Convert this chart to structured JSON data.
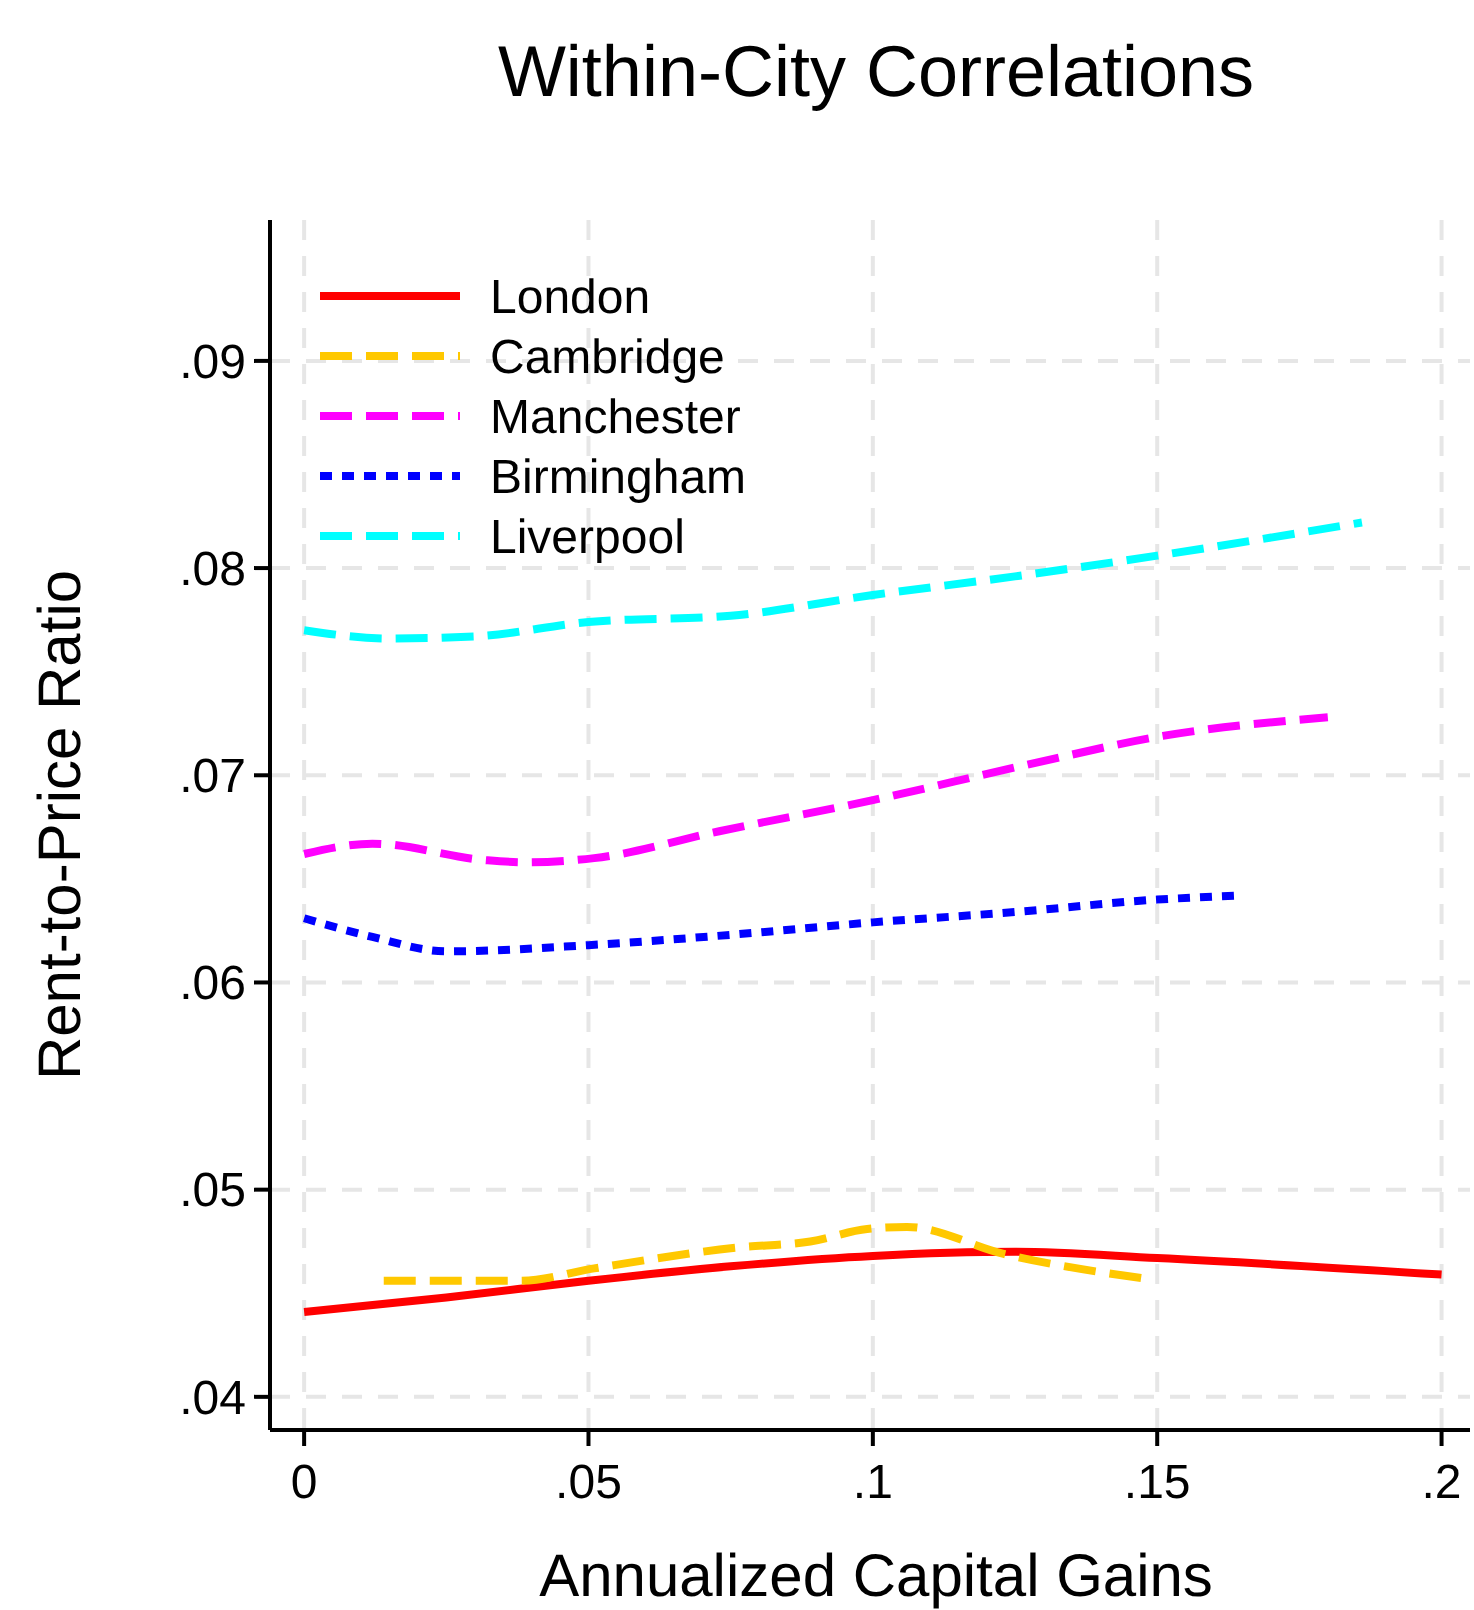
{
  "chart_data": {
    "type": "line",
    "title": "Within-City Correlations",
    "xlabel": "Annualized Capital Gains",
    "ylabel": "Rent-to-Price Ratio",
    "xlim": [
      -0.006,
      0.205
    ],
    "ylim": [
      0.0384,
      0.0968
    ],
    "xticks": [
      0,
      {
        "value": 0.05,
        "label": ".05"
      },
      {
        "value": 0.1,
        "label": ".1"
      },
      {
        "value": 0.15,
        "label": ".15"
      },
      {
        "value": 0.2,
        "label": ".2"
      }
    ],
    "yticks": [
      {
        "value": 0.04,
        "label": ".04"
      },
      {
        "value": 0.05,
        "label": ".05"
      },
      {
        "value": 0.06,
        "label": ".06"
      },
      {
        "value": 0.07,
        "label": ".07"
      },
      {
        "value": 0.08,
        "label": ".08"
      },
      {
        "value": 0.09,
        "label": ".09"
      }
    ],
    "grid": true,
    "legend": "top left",
    "marker": "none",
    "series": [
      {
        "name": "London",
        "color": "#ff0000",
        "line_style": "solid",
        "x": [
          0,
          0.025,
          0.05,
          0.075,
          0.1,
          0.125,
          0.15,
          0.2
        ],
        "values": [
          0.0441,
          0.0448,
          0.0456,
          0.0463,
          0.0468,
          0.047,
          0.0467,
          0.0459
        ]
      },
      {
        "name": "Cambridge",
        "color": "#ffc800",
        "line_style": "dashed",
        "x": [
          0.014,
          0.038,
          0.051,
          0.076,
          0.089,
          0.099,
          0.106,
          0.123,
          0.148
        ],
        "values": [
          0.0456,
          0.0456,
          0.0462,
          0.0472,
          0.0475,
          0.0481,
          0.0482,
          0.0469,
          0.0457
        ]
      },
      {
        "name": "Manchester",
        "color": "#ff00ff",
        "line_style": "dashed",
        "x": [
          0,
          0.012,
          0.032,
          0.039,
          0.051,
          0.073,
          0.1,
          0.127,
          0.151,
          0.18
        ],
        "values": [
          0.0662,
          0.0667,
          0.0659,
          0.0658,
          0.066,
          0.0673,
          0.0688,
          0.0705,
          0.0719,
          0.0728
        ]
      },
      {
        "name": "Birmingham",
        "color": "#0000ff",
        "line_style": "dotted",
        "x": [
          0,
          0.012,
          0.025,
          0.05,
          0.075,
          0.1,
          0.125,
          0.15,
          0.165
        ],
        "values": [
          0.0631,
          0.0622,
          0.0615,
          0.0618,
          0.0623,
          0.0629,
          0.0634,
          0.064,
          0.0642
        ]
      },
      {
        "name": "Liverpool",
        "color": "#00ffff",
        "line_style": "dashed",
        "x": [
          0,
          0.015,
          0.03,
          0.05,
          0.075,
          0.1,
          0.125,
          0.15,
          0.186
        ],
        "values": [
          0.077,
          0.0766,
          0.0767,
          0.0774,
          0.0777,
          0.0787,
          0.0796,
          0.0806,
          0.0822
        ]
      }
    ]
  }
}
